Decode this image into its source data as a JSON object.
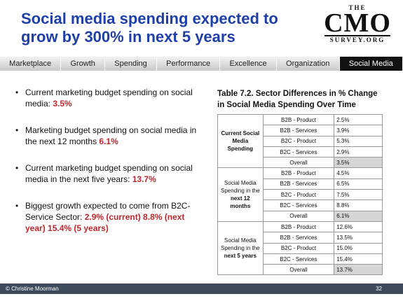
{
  "header": {
    "title": "Social media spending expected to grow by 300% in next 5 years",
    "logo": {
      "top": "THE",
      "main": "CMO",
      "bottom": "SURVEY.ORG"
    }
  },
  "nav": {
    "tabs": [
      "Marketplace",
      "Growth",
      "Spending",
      "Performance",
      "Excellence",
      "Organization",
      "Social Media"
    ],
    "active_index": 6
  },
  "bullets": [
    {
      "text": "Current marketing budget spending on social media: ",
      "highlight": "3.5%"
    },
    {
      "text": "Marketing budget spending on social media in the next 12 months ",
      "highlight": "6.1%"
    },
    {
      "text": "Current marketing budget spending on social media in the next five years: ",
      "highlight": "13.7%"
    },
    {
      "text": "Biggest growth expected to come from B2C-Service Sector: ",
      "highlight": "2.9% (current) 8.8% (next year) 15.4% (5 years)"
    }
  ],
  "table": {
    "title": "Table 7.2.  Sector Differences in % Change in Social Media Spending Over Time",
    "groups": [
      {
        "label_bold": "Current Social Media Spending",
        "rows": [
          [
            "B2B - Product",
            "2.5%"
          ],
          [
            "B2B - Services",
            "3.9%"
          ],
          [
            "B2C - Product",
            "5.3%"
          ],
          [
            "B2C - Services",
            "2.9%"
          ],
          [
            "Overall",
            "3.5%"
          ]
        ]
      },
      {
        "label": "Social Media Spending in the",
        "label_bold": "next 12 months",
        "rows": [
          [
            "B2B - Product",
            "4.5%"
          ],
          [
            "B2B - Services",
            "6.5%"
          ],
          [
            "B2C - Product",
            "7.5%"
          ],
          [
            "B2C - Services",
            "8.8%"
          ],
          [
            "Overall",
            "6.1%"
          ]
        ]
      },
      {
        "label": "Social Media Spending in the",
        "label_bold": "next 5 years",
        "rows": [
          [
            "B2B - Product",
            "12.6%"
          ],
          [
            "B2B - Services",
            "13.5%"
          ],
          [
            "B2C - Product",
            "15.0%"
          ],
          [
            "B2C - Services",
            "15.4%"
          ],
          [
            "Overall",
            "13.7%"
          ]
        ]
      }
    ]
  },
  "footer": {
    "author": "© Christine Moorman",
    "page": "32"
  }
}
